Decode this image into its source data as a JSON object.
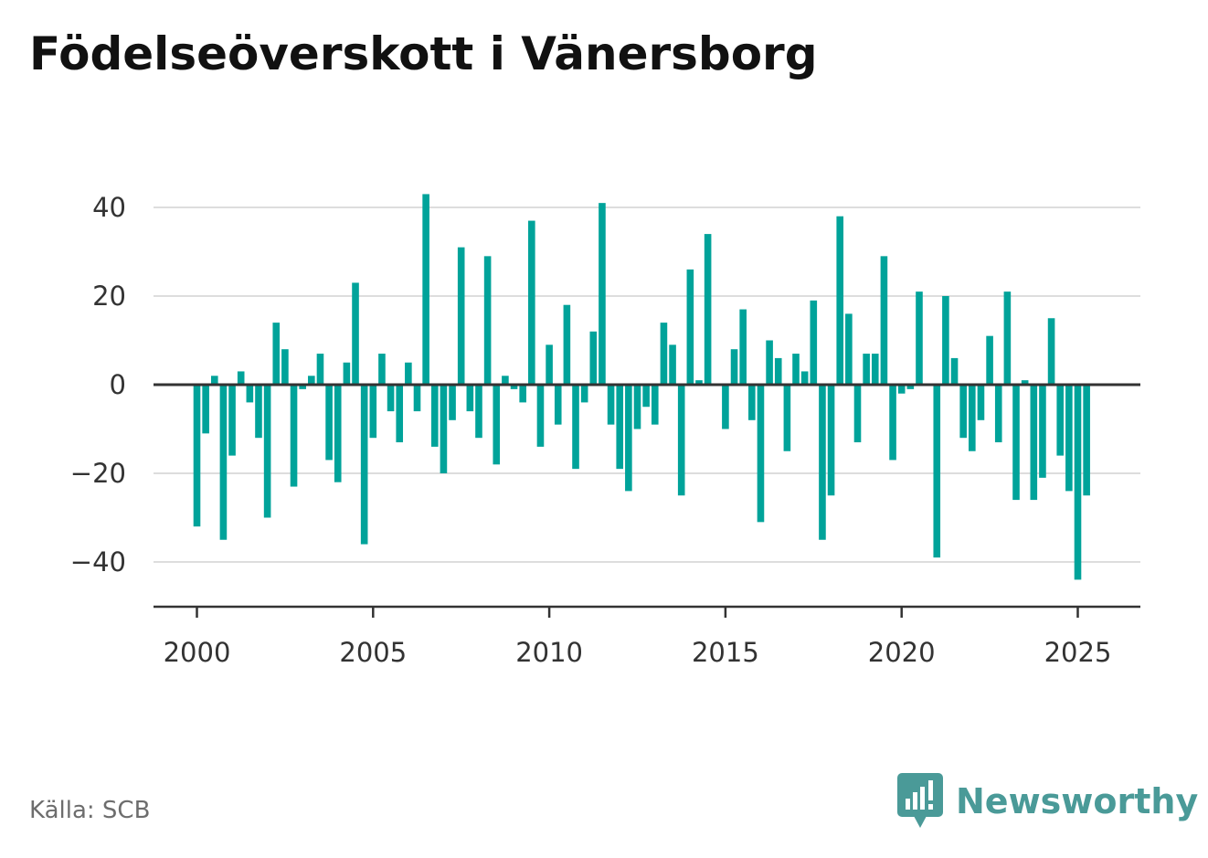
{
  "title": "Födelseöverskott i Vänersborg",
  "source": "Källa: SCB",
  "brand": {
    "name": "Newsworthy",
    "icon": "newsworthy-logo-icon",
    "color": "#4a9a98"
  },
  "colors": {
    "bar": "#00a39a",
    "grid": "#dddddd",
    "axis": "#333333"
  },
  "chart_data": {
    "type": "bar",
    "title": "Födelseöverskott i Vänersborg",
    "xlabel": "",
    "ylabel": "",
    "ylim": [
      -50,
      50
    ],
    "xlim": [
      1999.6,
      2026.8
    ],
    "grid": true,
    "yticks": [
      40,
      20,
      0,
      -20,
      -40
    ],
    "ytick_labels": [
      "40",
      "20",
      "0",
      "−20",
      "−40"
    ],
    "xticks": [
      2000,
      2005,
      2010,
      2015,
      2020,
      2025
    ],
    "xtick_labels": [
      "2000",
      "2005",
      "2010",
      "2015",
      "2020",
      "2025"
    ],
    "series": [
      {
        "x": [
          2000.0,
          2000.25,
          2000.5,
          2000.75,
          2001.0,
          2001.25,
          2001.5,
          2001.75,
          2002.0,
          2002.25,
          2002.5,
          2002.75,
          2003.0,
          2003.25,
          2003.5,
          2003.75,
          2004.0,
          2004.25,
          2004.5,
          2004.75,
          2005.0,
          2005.25,
          2005.5,
          2005.75,
          2006.0,
          2006.25,
          2006.5,
          2006.75,
          2007.0,
          2007.25,
          2007.5,
          2007.75,
          2008.0,
          2008.25,
          2008.5,
          2008.75,
          2009.0,
          2009.25,
          2009.5,
          2009.75,
          2010.0,
          2010.25,
          2010.5,
          2010.75,
          2011.0,
          2011.25,
          2011.5,
          2011.75,
          2012.0,
          2012.25,
          2012.5,
          2012.75,
          2013.0,
          2013.25,
          2013.5,
          2013.75,
          2014.0,
          2014.25,
          2014.5,
          2014.75,
          2015.0,
          2015.25,
          2015.5,
          2015.75,
          2016.0,
          2016.25,
          2016.5,
          2016.75,
          2017.0,
          2017.25,
          2017.5,
          2017.75,
          2018.0,
          2018.25,
          2018.5,
          2018.75,
          2019.0,
          2019.25,
          2019.5,
          2019.75,
          2020.0,
          2020.25,
          2020.5,
          2020.75,
          2021.0,
          2021.25,
          2021.5,
          2021.75,
          2022.0,
          2022.25,
          2022.5,
          2022.75,
          2023.0,
          2023.25,
          2023.5,
          2023.75,
          2024.0,
          2024.25,
          2024.5,
          2024.75,
          2025.0,
          2025.25
        ],
        "values": [
          -32,
          -11,
          2,
          -35,
          -16,
          3,
          -4,
          -12,
          -30,
          14,
          8,
          -23,
          -1,
          2,
          7,
          -17,
          -22,
          5,
          23,
          -36,
          -12,
          7,
          -6,
          -13,
          5,
          -6,
          43,
          -14,
          -20,
          -8,
          31,
          -6,
          -12,
          29,
          -18,
          2,
          -1,
          -4,
          37,
          -14,
          9,
          -9,
          18,
          -19,
          -4,
          12,
          41,
          -9,
          -19,
          -24,
          -10,
          -5,
          -9,
          14,
          9,
          -25,
          26,
          1,
          34,
          0,
          -10,
          8,
          17,
          -8,
          -31,
          10,
          6,
          -15,
          7,
          3,
          19,
          -35,
          -25,
          38,
          16,
          -13,
          7,
          7,
          29,
          -17,
          -2,
          -1,
          21,
          0,
          -39,
          20,
          6,
          -12,
          -15,
          -8,
          11,
          -13,
          21,
          -26,
          1,
          -26,
          -21,
          15,
          -16,
          -24,
          -44,
          -25
        ]
      }
    ]
  }
}
